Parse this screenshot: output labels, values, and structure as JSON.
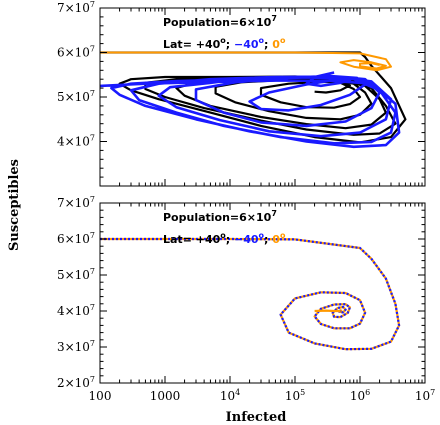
{
  "chart_data": [
    {
      "type": "line",
      "panel": "top",
      "x_scale": "log",
      "xlim": [
        100,
        10000000
      ],
      "ylim": [
        30000000,
        70000000
      ],
      "ylabel": "Susceptibles",
      "y_ticks": [
        {
          "value": 40000000,
          "base": "4×10",
          "exp": "7"
        },
        {
          "value": 50000000,
          "base": "5×10",
          "exp": "7"
        },
        {
          "value": 60000000,
          "base": "6×10",
          "exp": "7"
        },
        {
          "value": 70000000,
          "base": "7×10",
          "exp": "7"
        }
      ],
      "annotations": {
        "population": {
          "base": "Population=6×10",
          "exp": "7"
        },
        "lat_prefix": "Lat= ",
        "lat_north": "+40",
        "lat_south": "−40",
        "lat_equator": "0",
        "deg": "o",
        "sep": "; "
      },
      "series": [
        {
          "key": "north",
          "color": "#000000",
          "x": [
            100,
            1000000,
            1200000,
            1500000,
            3000000,
            5000000,
            3000000,
            1000000,
            200000,
            30000,
            5000,
            800,
            300,
            200,
            300,
            1000,
            10000,
            100000,
            700000,
            1500000,
            2500000,
            3500000,
            2000000,
            800000,
            150000,
            30000,
            4000,
            1000,
            500,
            500,
            1500,
            10000,
            80000,
            400000,
            1200000,
            2000000,
            2500000,
            1500000,
            600000,
            150000,
            30000,
            5000,
            2000,
            1500,
            3000,
            15000,
            80000,
            300000,
            800000,
            1200000,
            1500000,
            1000000,
            500000,
            150000,
            40000,
            12000,
            6000,
            6000,
            15000,
            60000,
            200000,
            500000,
            800000,
            1000000,
            700000,
            400000,
            150000,
            60000,
            30000,
            30000,
            80000,
            250000,
            500000,
            700000,
            500000,
            300000,
            200000
          ],
          "y": [
            60000000,
            60000000,
            59000000,
            57000000,
            52000000,
            45000000,
            41000000,
            39800000,
            41000000,
            43500000,
            46500000,
            49500000,
            51500000,
            53000000,
            54000000,
            54500000,
            54500000,
            54600000,
            54000000,
            52000000,
            48000000,
            44000000,
            41800000,
            41500000,
            42700000,
            44700000,
            47500000,
            50000000,
            51800000,
            53200000,
            54000000,
            54200000,
            54300000,
            54000000,
            52500000,
            49500000,
            46500000,
            43800000,
            43000000,
            43900000,
            45500000,
            48000000,
            50300000,
            52000000,
            53300000,
            53900000,
            54100000,
            54000000,
            53000000,
            51000000,
            48500000,
            46000000,
            45000000,
            45300000,
            46800000,
            48800000,
            50800000,
            52300000,
            53300000,
            53800000,
            53800000,
            53200000,
            51800000,
            50000000,
            48400000,
            47600000,
            47700000,
            48800000,
            50500000,
            52000000,
            53000000,
            53400000,
            53300000,
            52600000,
            51500000,
            51000000,
            51200000
          ]
        },
        {
          "key": "south",
          "color": "#1a1aff",
          "x": [
            100,
            500,
            5000,
            60000,
            400000,
            1500000,
            3500000,
            4000000,
            2500000,
            800000,
            150000,
            20000,
            3000,
            500,
            200,
            150,
            300,
            1500,
            15000,
            150000,
            800000,
            2000000,
            3500000,
            3000000,
            1500000,
            400000,
            60000,
            8000,
            1500,
            400,
            300,
            800,
            5000,
            50000,
            400000,
            1500000,
            3000000,
            2500000,
            1000000,
            250000,
            40000,
            7000,
            1500,
            800,
            1200,
            8000,
            60000,
            350000,
            1200000,
            2000000,
            1500000,
            600000,
            150000,
            30000,
            8000,
            3000,
            3000,
            12000,
            80000,
            350000,
            900000,
            1200000,
            700000,
            250000,
            80000,
            30000,
            20000,
            40000,
            150000,
            400000,
            700000,
            500000,
            250000,
            150000,
            200000,
            400000
          ],
          "y": [
            52500000,
            53000000,
            53400000,
            53700000,
            53600000,
            53000000,
            48500000,
            42000000,
            39200000,
            38800000,
            40000000,
            42300000,
            45000000,
            48000000,
            50500000,
            52000000,
            53000000,
            53600000,
            54000000,
            54400000,
            54000000,
            51500000,
            46500000,
            42000000,
            39900000,
            39600000,
            41000000,
            43500000,
            46500000,
            49300000,
            51500000,
            53000000,
            54000000,
            54500000,
            54600000,
            53500000,
            49500000,
            45000000,
            42000000,
            41200000,
            42300000,
            44800000,
            47700000,
            50300000,
            52200000,
            53500000,
            54300000,
            54700000,
            54000000,
            51000000,
            47500000,
            44500000,
            43500000,
            44300000,
            46500000,
            49300000,
            51700000,
            53300000,
            54300000,
            54700000,
            54300000,
            52800000,
            50500000,
            48200000,
            47000000,
            47300000,
            49000000,
            51000000,
            52800000,
            53800000,
            53800000,
            53200000,
            52500000,
            53000000,
            54500000,
            55500000
          ]
        },
        {
          "key": "equator",
          "color": "#ff9900",
          "x": [
            100,
            1000,
            10000,
            100000,
            1000000,
            2500000,
            3000000,
            1800000,
            800000,
            500000,
            800000,
            1500000,
            2500000,
            1800000,
            1000000,
            1000000,
            1500000,
            2000000
          ],
          "y": [
            60000000,
            60000000,
            60000000,
            60000000,
            59800000,
            58500000,
            56800000,
            56000000,
            56800000,
            57800000,
            58300000,
            57800000,
            57000000,
            56400000,
            56900000,
            57500000,
            57600000,
            57200000
          ]
        }
      ]
    },
    {
      "type": "line",
      "panel": "bottom",
      "x_scale": "log",
      "xlim": [
        100,
        10000000
      ],
      "ylim": [
        20000000,
        70000000
      ],
      "xlabel": "Infected",
      "ylabel": "Susceptibles",
      "x_ticks": [
        {
          "value": 100,
          "text": "100"
        },
        {
          "value": 1000,
          "text": "1000"
        },
        {
          "value": 10000,
          "base": "10",
          "exp": "4"
        },
        {
          "value": 100000,
          "base": "10",
          "exp": "5"
        },
        {
          "value": 1000000,
          "base": "10",
          "exp": "6"
        },
        {
          "value": 10000000,
          "base": "10",
          "exp": "7"
        }
      ],
      "y_ticks": [
        {
          "value": 20000000,
          "base": "2×10",
          "exp": "7"
        },
        {
          "value": 30000000,
          "base": "3×10",
          "exp": "7"
        },
        {
          "value": 40000000,
          "base": "4×10",
          "exp": "7"
        },
        {
          "value": 50000000,
          "base": "5×10",
          "exp": "7"
        },
        {
          "value": 60000000,
          "base": "6×10",
          "exp": "7"
        },
        {
          "value": 70000000,
          "base": "7×10",
          "exp": "7"
        }
      ],
      "annotations": {
        "population": {
          "base": "Population=6×10",
          "exp": "7"
        },
        "lat_prefix": "Lat= ",
        "lat_north": "+40",
        "lat_south": "−40",
        "lat_equator": "0",
        "deg": "o",
        "sep": "; "
      },
      "series": [
        {
          "key": "equator",
          "color": "#ff9900",
          "x": [
            100,
            1000,
            10000,
            100000,
            1000000,
            1500000,
            2500000,
            3500000,
            4000000,
            3000000,
            1500000,
            600000,
            200000,
            80000,
            60000,
            100000,
            250000,
            600000,
            1000000,
            1200000,
            1000000,
            700000,
            400000,
            250000,
            200000,
            250000,
            400000,
            600000,
            700000,
            650000,
            500000,
            400000,
            380000,
            450000,
            550000,
            600000,
            550000,
            480000,
            500000,
            530000
          ],
          "y": [
            60000000,
            60000000,
            60000000,
            59900000,
            57500000,
            54500000,
            49000000,
            42000000,
            36000000,
            31500000,
            29500000,
            29400000,
            31000000,
            34000000,
            39000000,
            43500000,
            45200000,
            45000000,
            43000000,
            39500000,
            36500000,
            35200000,
            35200000,
            36400000,
            38500000,
            40600000,
            41800000,
            41900000,
            41000000,
            39500000,
            38300000,
            38400000,
            39500000,
            40800000,
            41100000,
            40400000,
            39600000,
            39800000,
            40200000,
            40000000
          ]
        },
        {
          "key": "south",
          "color": "#1a1aff",
          "x": [
            100,
            1000,
            10000,
            100000,
            1000000,
            1500000,
            2500000,
            3500000,
            4000000,
            3000000,
            1500000,
            600000,
            200000,
            80000,
            60000,
            100000,
            250000,
            600000,
            1000000,
            1200000,
            1000000,
            700000,
            400000,
            250000,
            200000,
            250000,
            400000,
            600000,
            700000,
            650000,
            500000,
            400000,
            380000,
            450000,
            550000,
            600000,
            550000,
            480000,
            500000,
            530000
          ],
          "y": [
            60000000,
            60000000,
            60000000,
            59900000,
            57500000,
            54500000,
            49000000,
            42000000,
            36000000,
            31500000,
            29500000,
            29400000,
            31000000,
            34000000,
            39000000,
            43500000,
            45200000,
            45000000,
            43000000,
            39500000,
            36500000,
            35200000,
            35200000,
            36400000,
            38500000,
            40600000,
            41800000,
            41900000,
            41000000,
            39500000,
            38300000,
            38400000,
            39500000,
            40800000,
            41100000,
            40400000,
            39600000,
            39800000,
            40200000,
            40000000
          ]
        },
        {
          "key": "equator-tail",
          "color": "#ff9900",
          "x": [
            200000,
            300000,
            400000,
            500000
          ],
          "y": [
            40000000,
            40100000,
            40000000,
            40000000
          ]
        }
      ]
    }
  ]
}
